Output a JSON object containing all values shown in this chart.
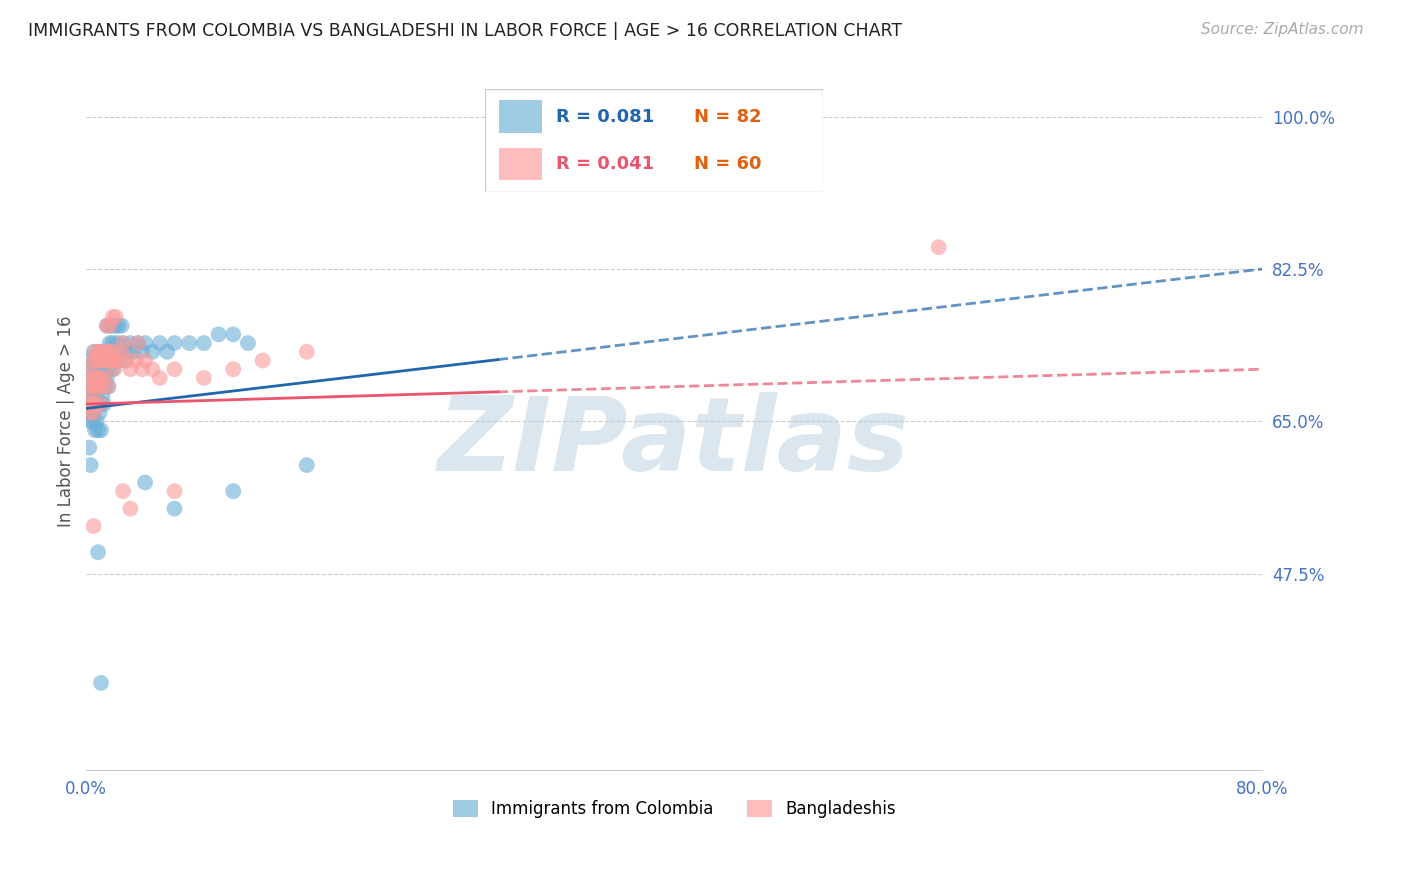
{
  "title": "IMMIGRANTS FROM COLOMBIA VS BANGLADESHI IN LABOR FORCE | AGE > 16 CORRELATION CHART",
  "source": "Source: ZipAtlas.com",
  "ylabel": "In Labor Force | Age > 16",
  "xlim": [
    0.0,
    0.8
  ],
  "ylim": [
    0.25,
    1.05
  ],
  "ytick_right": [
    1.0,
    0.825,
    0.65,
    0.475
  ],
  "ytick_right_labels": [
    "100.0%",
    "82.5%",
    "65.0%",
    "47.5%"
  ],
  "colombia_color": "#6baed6",
  "bangladesh_color": "#fb9a99",
  "colombia_line_color": "#2166ac",
  "bangladesh_line_color": "#e8556d",
  "watermark": "ZIPatlas",
  "watermark_color": "#b8cfe0",
  "colombia_x": [
    0.001,
    0.002,
    0.002,
    0.003,
    0.003,
    0.003,
    0.004,
    0.004,
    0.004,
    0.005,
    0.005,
    0.005,
    0.006,
    0.006,
    0.006,
    0.006,
    0.007,
    0.007,
    0.007,
    0.008,
    0.008,
    0.008,
    0.008,
    0.009,
    0.009,
    0.009,
    0.01,
    0.01,
    0.01,
    0.01,
    0.011,
    0.011,
    0.012,
    0.012,
    0.012,
    0.013,
    0.013,
    0.014,
    0.014,
    0.015,
    0.015,
    0.016,
    0.016,
    0.017,
    0.018,
    0.018,
    0.019,
    0.02,
    0.021,
    0.022,
    0.024,
    0.025,
    0.026,
    0.028,
    0.03,
    0.032,
    0.035,
    0.038,
    0.04,
    0.045,
    0.05,
    0.055,
    0.06,
    0.07,
    0.08,
    0.09,
    0.1,
    0.11,
    0.014,
    0.016,
    0.018,
    0.02,
    0.022,
    0.024,
    0.04,
    0.06,
    0.1,
    0.15,
    0.002,
    0.003,
    0.008,
    0.01
  ],
  "colombia_y": [
    0.68,
    0.7,
    0.66,
    0.72,
    0.68,
    0.65,
    0.71,
    0.68,
    0.65,
    0.73,
    0.69,
    0.66,
    0.72,
    0.69,
    0.67,
    0.64,
    0.71,
    0.68,
    0.65,
    0.73,
    0.7,
    0.67,
    0.64,
    0.72,
    0.69,
    0.66,
    0.73,
    0.7,
    0.67,
    0.64,
    0.71,
    0.68,
    0.73,
    0.7,
    0.67,
    0.72,
    0.69,
    0.73,
    0.7,
    0.72,
    0.69,
    0.74,
    0.71,
    0.73,
    0.74,
    0.71,
    0.73,
    0.72,
    0.74,
    0.72,
    0.73,
    0.74,
    0.72,
    0.73,
    0.74,
    0.73,
    0.74,
    0.73,
    0.74,
    0.73,
    0.74,
    0.73,
    0.74,
    0.74,
    0.74,
    0.75,
    0.75,
    0.74,
    0.76,
    0.76,
    0.76,
    0.76,
    0.76,
    0.76,
    0.58,
    0.55,
    0.57,
    0.6,
    0.62,
    0.6,
    0.5,
    0.35
  ],
  "bangladesh_x": [
    0.001,
    0.002,
    0.002,
    0.003,
    0.003,
    0.004,
    0.004,
    0.005,
    0.005,
    0.005,
    0.006,
    0.006,
    0.006,
    0.007,
    0.007,
    0.008,
    0.008,
    0.009,
    0.009,
    0.01,
    0.01,
    0.01,
    0.011,
    0.011,
    0.012,
    0.012,
    0.013,
    0.014,
    0.015,
    0.015,
    0.016,
    0.017,
    0.018,
    0.019,
    0.02,
    0.022,
    0.024,
    0.025,
    0.027,
    0.03,
    0.033,
    0.035,
    0.038,
    0.04,
    0.045,
    0.05,
    0.06,
    0.08,
    0.1,
    0.12,
    0.15,
    0.014,
    0.016,
    0.018,
    0.02,
    0.025,
    0.03,
    0.06,
    0.58,
    0.005
  ],
  "bangladesh_y": [
    0.67,
    0.69,
    0.66,
    0.71,
    0.68,
    0.7,
    0.67,
    0.72,
    0.69,
    0.66,
    0.73,
    0.7,
    0.67,
    0.72,
    0.69,
    0.73,
    0.7,
    0.72,
    0.69,
    0.73,
    0.7,
    0.67,
    0.72,
    0.69,
    0.73,
    0.7,
    0.72,
    0.73,
    0.72,
    0.69,
    0.73,
    0.72,
    0.73,
    0.71,
    0.72,
    0.72,
    0.73,
    0.74,
    0.72,
    0.71,
    0.72,
    0.74,
    0.71,
    0.72,
    0.71,
    0.7,
    0.71,
    0.7,
    0.71,
    0.72,
    0.73,
    0.76,
    0.76,
    0.77,
    0.77,
    0.57,
    0.55,
    0.57,
    0.85,
    0.53
  ],
  "background_color": "#ffffff",
  "grid_color": "#cccccc",
  "title_color": "#333333",
  "axis_label_color": "#555555",
  "tick_color_right": "#4472c4",
  "tick_color_bottom": "#4472c4",
  "solid_line_end_x": 0.28,
  "dash_line_end_x": 0.8
}
